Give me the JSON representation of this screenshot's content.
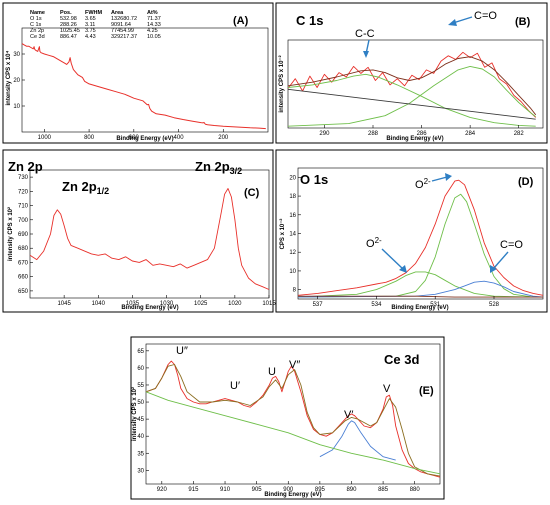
{
  "chart_data": [
    {
      "id": "A",
      "type": "line",
      "panel_label": "(A)",
      "xlabel": "Binding Energy (eV)",
      "ylabel": "intensity CPS x 10⁴",
      "xlim": [
        1100,
        0
      ],
      "ylim": [
        0,
        40
      ],
      "x_ticks": [
        1000,
        800,
        600,
        400,
        200
      ],
      "y_ticks": [
        10,
        20,
        30
      ],
      "table": {
        "headers": [
          "Name",
          "Pos.",
          "FWHM",
          "Area",
          "At%"
        ],
        "rows": [
          [
            "O 1s",
            "532.98",
            "3.65",
            "132680.72",
            "71.37"
          ],
          [
            "C 1s",
            "288.26",
            "3.11",
            "9091.64",
            "14.33"
          ],
          [
            "Zn 2p",
            "1025.45",
            "3.75",
            "77454.99",
            "4.25"
          ],
          [
            "Ce 3d",
            "886.47",
            "4.43",
            "329217.37",
            "10.05"
          ]
        ]
      },
      "series": [
        {
          "color": "#e8302a",
          "x": [
            1100,
            1090,
            1080,
            1070,
            1060,
            1050,
            1046,
            1044,
            1040,
            1030,
            1022,
            1020,
            1015,
            1000,
            980,
            960,
            940,
            920,
            910,
            900,
            890,
            885,
            880,
            870,
            850,
            840,
            830,
            820,
            800,
            760,
            720,
            680,
            640,
            600,
            560,
            540,
            534,
            531,
            528,
            520,
            500,
            460,
            420,
            380,
            340,
            300,
            290,
            286,
            283,
            280,
            270,
            240,
            200,
            160,
            120,
            80,
            40,
            10
          ],
          "y": [
            34,
            33.5,
            33,
            33,
            32.5,
            32,
            32.8,
            32,
            31.5,
            31,
            32.8,
            31,
            30.5,
            30,
            29.5,
            29,
            28,
            27,
            26.5,
            26,
            27,
            28.6,
            26.5,
            24,
            22,
            21.5,
            21,
            19.5,
            18.5,
            17.5,
            16.5,
            15.5,
            14.5,
            13,
            12,
            10.5,
            10.6,
            9.8,
            9,
            8,
            7,
            6.5,
            5.5,
            4.8,
            4.2,
            3.6,
            3.5,
            3.7,
            3.3,
            3,
            2.8,
            2.5,
            2.2,
            2,
            1.8,
            1.6,
            1.5,
            1.3
          ]
        }
      ]
    },
    {
      "id": "B",
      "type": "line",
      "panel_label": "(B)",
      "title": "C 1s",
      "xlabel": "Binding Energy (eV)",
      "ylabel": "intensity CPS x 10⁻²",
      "xlim": [
        291.5,
        281
      ],
      "ylim": [
        0,
        10
      ],
      "x_ticks": [
        290,
        288,
        286,
        284,
        282
      ],
      "annotations": [
        "C-C",
        "C=O"
      ],
      "series": [
        {
          "color": "#e8302a",
          "x": [
            291.5,
            291.2,
            290.9,
            290.6,
            290.3,
            290.0,
            289.7,
            289.4,
            289.1,
            288.8,
            288.5,
            288.2,
            287.9,
            287.6,
            287.3,
            287.0,
            286.7,
            286.4,
            286.1,
            285.8,
            285.5,
            285.2,
            284.9,
            284.6,
            284.3,
            284.0,
            283.7,
            283.4,
            283.1,
            282.8,
            282.5,
            282.2,
            281.9,
            281.6,
            281.3
          ],
          "y": [
            4.5,
            5.6,
            4.2,
            5.9,
            4.6,
            6.1,
            5.2,
            6.3,
            5.8,
            7.0,
            6.2,
            6.9,
            5.4,
            6.3,
            4.9,
            5.6,
            4.8,
            6.0,
            5.5,
            6.6,
            6.2,
            7.6,
            8.2,
            7.8,
            8.6,
            8.0,
            8.5,
            6.9,
            7.4,
            5.6,
            5.0,
            3.7,
            3.0,
            2.0,
            1.2
          ]
        },
        {
          "color": "#7d2f1b",
          "x": [
            291.5,
            290.5,
            289.5,
            288.5,
            288.0,
            287.5,
            287.0,
            286.5,
            286.0,
            285.5,
            285.0,
            284.5,
            284.0,
            283.5,
            283.0,
            282.5,
            282.0,
            281.5,
            281.3
          ],
          "y": [
            4.8,
            5.2,
            5.8,
            6.5,
            6.6,
            6.3,
            5.7,
            5.4,
            5.7,
            6.4,
            7.3,
            7.9,
            8.1,
            7.6,
            6.6,
            5.2,
            3.7,
            2.2,
            1.5
          ]
        },
        {
          "color": "#6fbf4a",
          "x": [
            291.5,
            290.5,
            289.5,
            288.8,
            288.3,
            287.8,
            287.0,
            286.0,
            285.0,
            284.0,
            283.0,
            282.0,
            281.3
          ],
          "y": [
            4.6,
            4.9,
            5.4,
            5.9,
            6.1,
            5.8,
            4.9,
            3.6,
            2.2,
            1.2,
            0.6,
            0.3,
            0.2
          ]
        },
        {
          "color": "#6fbf4a",
          "x": [
            291.5,
            289.0,
            287.5,
            286.5,
            285.5,
            284.5,
            284.0,
            283.5,
            283.0,
            282.5,
            282.0,
            281.5,
            281.3
          ],
          "y": [
            0.2,
            0.5,
            1.4,
            2.8,
            4.8,
            6.6,
            7.0,
            6.7,
            5.8,
            4.3,
            2.9,
            1.7,
            1.3
          ]
        },
        {
          "color": "#3a3a3a",
          "x": [
            291.5,
            281.3
          ],
          "y": [
            4.4,
            1.0
          ]
        }
      ]
    },
    {
      "id": "C",
      "type": "line",
      "panel_label": "(C)",
      "title": "Zn 2p",
      "xlabel": "Binding Energy (eV)",
      "ylabel": "intensity CPS x 10²",
      "xlim": [
        1050,
        1015
      ],
      "ylim": [
        645,
        735
      ],
      "x_ticks": [
        1045,
        1040,
        1035,
        1030,
        1025,
        1020,
        1015
      ],
      "y_ticks": [
        650,
        660,
        670,
        680,
        690,
        700,
        710,
        720,
        730
      ],
      "annotations": [
        "Zn 2p1/2",
        "Zn 2p3/2"
      ],
      "series": [
        {
          "color": "#e8302a",
          "x": [
            1050,
            1049,
            1048,
            1047,
            1046.5,
            1046,
            1045.5,
            1045,
            1044.5,
            1044,
            1043,
            1042,
            1041,
            1040,
            1039,
            1038,
            1037,
            1036,
            1035,
            1034,
            1033,
            1032,
            1031,
            1030,
            1029,
            1028,
            1027,
            1026,
            1025,
            1024,
            1023,
            1022,
            1021.5,
            1021,
            1020.5,
            1020,
            1019.5,
            1019,
            1018,
            1017,
            1016,
            1015
          ],
          "y": [
            675,
            672,
            678,
            690,
            703,
            707,
            704,
            696,
            687,
            682,
            680,
            678,
            676,
            675,
            676,
            673,
            672,
            674,
            671,
            670,
            672,
            668,
            669,
            668,
            667,
            669,
            666,
            668,
            670,
            672,
            680,
            705,
            718,
            722,
            716,
            700,
            680,
            668,
            659,
            655,
            653,
            651
          ]
        }
      ]
    },
    {
      "id": "D",
      "type": "line",
      "panel_label": "(D)",
      "title": "O 1s",
      "xlabel": "Binding Energy (eV)",
      "ylabel": "CPS x 10⁻²",
      "xlim": [
        538,
        525.5
      ],
      "ylim": [
        7,
        21
      ],
      "x_ticks": [
        537,
        534,
        531,
        528
      ],
      "y_ticks": [
        8,
        10,
        12,
        14,
        16,
        18,
        20
      ],
      "annotations": [
        "O2-",
        "O2-",
        "C=O"
      ],
      "series": [
        {
          "color": "#e8302a",
          "x": [
            538,
            537,
            536,
            535,
            534,
            533.5,
            533,
            532.5,
            532,
            531.5,
            531,
            530.5,
            530,
            529.8,
            529.5,
            529,
            528.5,
            528,
            527.5,
            527,
            526.5,
            526,
            525.5
          ],
          "y": [
            7.4,
            7.6,
            7.9,
            8.2,
            8.6,
            8.8,
            9.2,
            9.8,
            10.8,
            12.5,
            15.0,
            18.0,
            19.6,
            19.7,
            19.2,
            16.5,
            13.0,
            10.5,
            9.3,
            8.4,
            7.9,
            7.6,
            7.4
          ]
        },
        {
          "color": "#6fbf4a",
          "x": [
            538,
            533,
            532,
            531.5,
            531,
            530.5,
            530,
            529.7,
            529.4,
            529,
            528.5,
            528,
            527.5,
            527,
            526,
            525.5
          ],
          "y": [
            7.2,
            7.3,
            7.8,
            9.0,
            11.5,
            15.0,
            17.8,
            18.2,
            17.4,
            15.0,
            11.8,
            9.4,
            8.1,
            7.5,
            7.2,
            7.2
          ]
        },
        {
          "color": "#6fbf4a",
          "x": [
            538,
            535,
            534,
            533,
            532.5,
            532,
            531.5,
            531,
            530.5,
            530,
            529,
            528,
            526,
            525.5
          ],
          "y": [
            7.2,
            7.5,
            8.0,
            8.9,
            9.5,
            9.9,
            9.9,
            9.6,
            9.0,
            8.4,
            7.6,
            7.3,
            7.2,
            7.2
          ]
        },
        {
          "color": "#4a7fd4",
          "x": [
            538,
            532,
            531,
            530,
            529.5,
            529,
            528.5,
            528,
            527.5,
            527,
            526,
            525.5
          ],
          "y": [
            7.2,
            7.3,
            7.5,
            8.0,
            8.4,
            8.8,
            8.9,
            8.7,
            8.3,
            7.8,
            7.3,
            7.2
          ]
        },
        {
          "color": "#7d2f1b",
          "x": [
            538,
            536,
            534,
            532,
            530,
            528,
            526,
            525.5
          ],
          "y": [
            7.3,
            7.3,
            7.3,
            7.3,
            7.2,
            7.2,
            7.2,
            7.2
          ]
        }
      ]
    },
    {
      "id": "E",
      "type": "line",
      "panel_label": "(E)",
      "title": "Ce 3d",
      "xlabel": "Binding Energy (eV)",
      "ylabel": "intensity CPS x 10²",
      "xlim": [
        922.5,
        876
      ],
      "ylim": [
        26,
        67
      ],
      "x_ticks": [
        920,
        915,
        910,
        905,
        900,
        895,
        890,
        885,
        880
      ],
      "y_ticks": [
        30,
        35,
        40,
        45,
        50,
        55,
        60,
        65
      ],
      "annotations": [
        "U″",
        "U′",
        "U",
        "V″",
        "V′",
        "V"
      ],
      "series": [
        {
          "color": "#e8302a",
          "x": [
            922.5,
            921,
            920,
            919,
            918.5,
            918,
            917.5,
            917,
            916,
            915,
            914,
            913,
            912,
            911,
            910,
            909,
            908,
            907,
            906,
            905,
            904,
            903,
            902.5,
            902,
            901.5,
            901,
            900.5,
            900,
            899.5,
            899,
            898,
            897,
            896,
            895,
            894,
            893,
            892,
            891,
            890.5,
            890,
            889.5,
            889,
            888,
            887,
            886,
            885,
            884.5,
            884,
            883.5,
            883,
            882,
            881,
            880,
            879,
            878,
            877,
            876
          ],
          "y": [
            53,
            54,
            57,
            61,
            62,
            61,
            58,
            54,
            51,
            50,
            49.5,
            49.5,
            50,
            50.5,
            51,
            50.5,
            50,
            49,
            48.5,
            50,
            52,
            55,
            57,
            57.5,
            56,
            53,
            56,
            59,
            60.5,
            59,
            53,
            46,
            42,
            40.5,
            40,
            41,
            43,
            45,
            46,
            46.5,
            46,
            45,
            43,
            42.5,
            44,
            48,
            51.5,
            52,
            49,
            43,
            36,
            32,
            30.5,
            29.5,
            29,
            28.5,
            28
          ]
        },
        {
          "color": "#8a6d1f",
          "x": [
            922.5,
            921,
            920,
            919,
            918,
            917,
            916,
            914,
            912,
            910,
            908,
            906,
            904,
            903,
            902,
            901,
            900,
            899,
            898,
            897,
            896,
            895,
            893,
            891,
            890,
            889,
            887,
            886,
            885,
            884,
            883,
            882,
            881,
            880,
            878,
            876
          ],
          "y": [
            53,
            54,
            57,
            60.5,
            61,
            57.5,
            53,
            50,
            50,
            50.5,
            50,
            49,
            51.5,
            54.5,
            56.5,
            54,
            58,
            59.5,
            55,
            47,
            42.5,
            40.5,
            41,
            44.5,
            45.5,
            45,
            43,
            44,
            47.5,
            51,
            48.5,
            42,
            35,
            31,
            29,
            28.3
          ]
        },
        {
          "color": "#4a7fd4",
          "x": [
            895,
            893,
            891.5,
            890.5,
            890,
            889.5,
            888.5,
            887,
            885,
            883
          ],
          "y": [
            34,
            36,
            40,
            43.5,
            44.5,
            44,
            41,
            37,
            34,
            33
          ]
        },
        {
          "color": "#6fbf4a",
          "x": [
            922.5,
            919,
            915,
            910,
            905,
            900,
            895,
            890,
            885,
            880,
            876
          ],
          "y": [
            53,
            50.5,
            48.5,
            46,
            43.5,
            41,
            37.5,
            35,
            33,
            30.5,
            29
          ]
        }
      ]
    }
  ]
}
